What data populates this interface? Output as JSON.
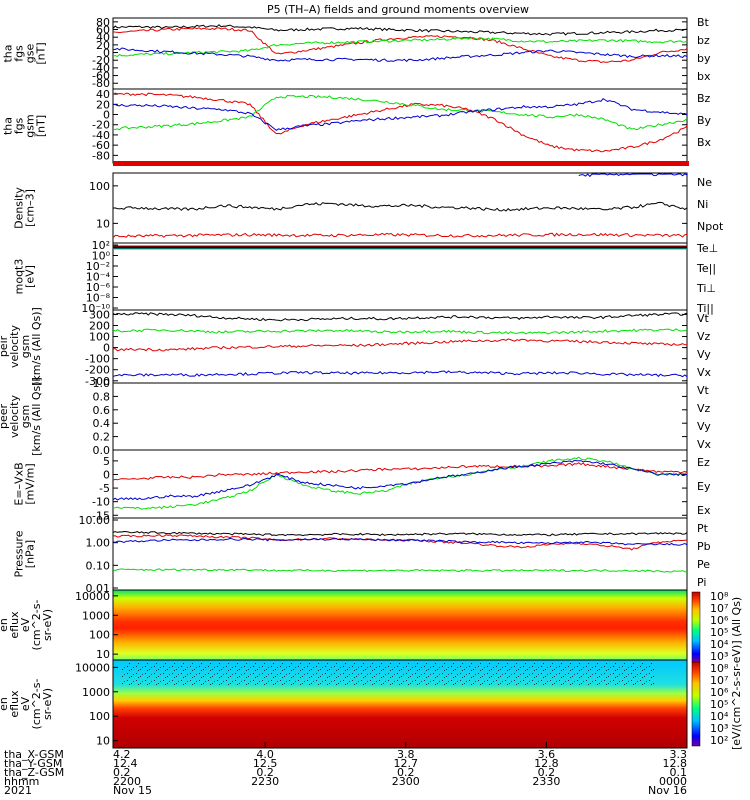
{
  "title": "P5 (TH–A) fields and ground moments overview",
  "colors": {
    "black": "#000000",
    "red": "#e00000",
    "green": "#00e000",
    "blue": "#0000d0"
  },
  "chart_data": [
    {
      "type": "line",
      "panel": "tha_fgs_gse",
      "ylabel": [
        "tha",
        "fgs",
        "gse",
        "[nT]"
      ],
      "yticks": [
        -80,
        -60,
        -40,
        -20,
        0,
        20,
        40,
        60,
        80
      ],
      "ylim": [
        -95,
        90
      ],
      "series": [
        {
          "name": "Bt",
          "color": "black",
          "values": [
            66,
            67,
            65,
            68,
            70,
            66,
            58,
            60,
            62,
            63,
            60,
            58,
            56,
            54,
            52,
            50,
            48,
            50,
            52,
            54,
            58,
            58
          ]
        },
        {
          "name": "bz",
          "color": "red",
          "values": [
            52,
            56,
            60,
            62,
            62,
            58,
            -5,
            5,
            15,
            25,
            35,
            40,
            42,
            40,
            30,
            10,
            -10,
            -20,
            -25,
            -20,
            0,
            10
          ]
        },
        {
          "name": "by",
          "color": "green",
          "values": [
            -8,
            -5,
            -3,
            0,
            2,
            5,
            20,
            24,
            26,
            28,
            30,
            32,
            34,
            38,
            35,
            30,
            28,
            30,
            32,
            30,
            28,
            30
          ]
        },
        {
          "name": "bx",
          "color": "blue",
          "values": [
            10,
            6,
            2,
            -2,
            -5,
            -10,
            -20,
            -18,
            -18,
            -18,
            -20,
            -20,
            -15,
            -10,
            -6,
            0,
            5,
            0,
            -5,
            -10,
            -8,
            -10
          ]
        }
      ]
    },
    {
      "type": "line",
      "panel": "tha_fgs_gsm",
      "ylabel": [
        "tha",
        "fgs",
        "gsm",
        "[nT]"
      ],
      "yticks": [
        -80,
        -60,
        -40,
        -20,
        0,
        20,
        40
      ],
      "ylim": [
        -95,
        50
      ],
      "series": [
        {
          "name": "Bz",
          "color": "red",
          "values": [
            40,
            40,
            38,
            34,
            28,
            20,
            -40,
            -20,
            -10,
            0,
            10,
            20,
            18,
            10,
            -10,
            -40,
            -62,
            -70,
            -72,
            -64,
            -50,
            -25
          ]
        },
        {
          "name": "By",
          "color": "green",
          "values": [
            -28,
            -25,
            -22,
            -18,
            -12,
            -5,
            35,
            35,
            34,
            30,
            25,
            18,
            10,
            8,
            5,
            0,
            -5,
            0,
            -10,
            -30,
            -20,
            -10
          ]
        },
        {
          "name": "Bx",
          "color": "blue",
          "values": [
            18,
            18,
            16,
            12,
            10,
            2,
            -30,
            -22,
            -18,
            -12,
            -8,
            -5,
            -2,
            5,
            10,
            15,
            15,
            20,
            30,
            10,
            5,
            0
          ]
        }
      ]
    },
    {
      "type": "line",
      "panel": "density",
      "log": true,
      "ylabel": [
        "Density",
        "[cm–3]"
      ],
      "yticks": [
        10,
        100
      ],
      "ylim": [
        3,
        220
      ],
      "series": [
        {
          "name": "Ne",
          "color": "red",
          "values": [
            4.5,
            4.6,
            4.7,
            4.8,
            4.9,
            5.0,
            4.9,
            4.8,
            4.8,
            4.9,
            5.0,
            4.9,
            4.8,
            4.7,
            4.8,
            4.9,
            5.0,
            5.1,
            5.0,
            4.9,
            4.8,
            4.7
          ]
        },
        {
          "name": "Ni",
          "color": "black",
          "values": [
            25,
            26,
            24,
            24,
            30,
            27,
            24,
            32,
            34,
            30,
            29,
            30,
            27,
            26,
            23,
            24,
            26,
            25,
            23,
            27,
            34,
            24
          ]
        },
        {
          "name": "Npot",
          "color": "blue",
          "values": [
            null,
            null,
            null,
            null,
            null,
            null,
            null,
            null,
            null,
            null,
            null,
            null,
            null,
            null,
            null,
            null,
            null,
            190,
            200,
            210,
            200,
            205
          ]
        }
      ]
    },
    {
      "type": "line",
      "panel": "moqt3",
      "log": true,
      "ylabel": [
        "moqt3",
        "[eV]"
      ],
      "ytick_labels": [
        "10²",
        "10⁰",
        "10⁻²",
        "10⁻⁴",
        "10⁻⁶",
        "10⁻⁸",
        "10⁻¹⁰"
      ],
      "legend": [
        "Te⊥",
        "Te||",
        "Ti⊥",
        "Ti||"
      ]
    },
    {
      "type": "line",
      "panel": "tha_peir_velocity_gsm",
      "ylabel": [
        "tha",
        "peir",
        "velocity",
        "gsm",
        "[km/s (All Qs)]"
      ],
      "yticks": [
        -300,
        -200,
        -100,
        0,
        100,
        200,
        300
      ],
      "ylim": [
        -320,
        340
      ],
      "series": [
        {
          "name": "Vt",
          "color": "black",
          "values": [
            300,
            305,
            300,
            290,
            270,
            260,
            250,
            255,
            260,
            265,
            260,
            270,
            275,
            280,
            270,
            265,
            280,
            270,
            275,
            290,
            300,
            305
          ]
        },
        {
          "name": "Vz",
          "color": "red",
          "values": [
            -20,
            -15,
            -20,
            -10,
            0,
            5,
            10,
            15,
            20,
            20,
            30,
            40,
            50,
            60,
            65,
            70,
            60,
            55,
            50,
            40,
            30,
            30
          ]
        },
        {
          "name": "Vy",
          "color": "green",
          "values": [
            150,
            155,
            160,
            150,
            140,
            145,
            150,
            150,
            155,
            150,
            140,
            145,
            150,
            140,
            135,
            130,
            135,
            140,
            150,
            155,
            160,
            160
          ]
        },
        {
          "name": "Vx",
          "color": "blue",
          "values": [
            -250,
            -248,
            -245,
            -248,
            -240,
            -238,
            -230,
            -225,
            -230,
            -232,
            -228,
            -225,
            -220,
            -225,
            -230,
            -235,
            -230,
            -228,
            -240,
            -245,
            -250,
            -252
          ]
        }
      ]
    },
    {
      "type": "line",
      "panel": "tha_peer_velocity_gsm",
      "ylabel": [
        "tha",
        "peer",
        "velocity",
        "gsm",
        "[km/s (All Qs)]"
      ],
      "yticks": [
        0.0,
        0.2,
        0.4,
        0.6,
        0.8,
        1.0
      ],
      "ylim": [
        0,
        1
      ],
      "legend": [
        "Vt",
        "Vz",
        "Vy",
        "Vx"
      ]
    },
    {
      "type": "line",
      "panel": "E_VxB",
      "ylabel": [
        "E=–VxB",
        "[mV/m]"
      ],
      "yticks": [
        -15,
        -10,
        -5,
        0,
        5
      ],
      "ylim": [
        -16,
        9
      ],
      "series": [
        {
          "name": "Ez",
          "color": "red",
          "values": [
            -2,
            -1.5,
            -1,
            -1,
            0,
            0,
            0.5,
            1,
            1,
            1.5,
            2,
            2,
            2.5,
            3,
            3,
            3,
            3,
            4,
            3,
            2,
            1,
            1
          ]
        },
        {
          "name": "Ey",
          "color": "green",
          "values": [
            -12,
            -12.5,
            -12,
            -11,
            -9,
            -6,
            0,
            -4,
            -6,
            -7,
            -6,
            -3,
            -1,
            0,
            2,
            3,
            5,
            6,
            5,
            2,
            0,
            0
          ]
        },
        {
          "name": "Ex",
          "color": "blue",
          "values": [
            -9,
            -9,
            -8,
            -8,
            -6,
            -4,
            0,
            -3,
            -4,
            -5,
            -4,
            -3,
            -1,
            0,
            2,
            3,
            4,
            5,
            4,
            2,
            0,
            0
          ]
        }
      ]
    },
    {
      "type": "line",
      "panel": "pressure",
      "log": true,
      "ylabel": [
        "Pressure",
        "[nPa]"
      ],
      "ytick_labels": [
        "10.00",
        "1.00",
        "0.10",
        "0.01"
      ],
      "ylim": [
        0.01,
        10
      ],
      "series": [
        {
          "name": "Pt",
          "color": "black",
          "values": [
            2.6,
            2.5,
            2.4,
            2.3,
            2.2,
            2.1,
            2.0,
            2.0,
            2.1,
            2.1,
            2.0,
            2.1,
            2.2,
            2.2,
            2.1,
            2.0,
            2.0,
            2.1,
            2.2,
            2.2,
            2.3,
            2.3
          ]
        },
        {
          "name": "Pb",
          "color": "red",
          "values": [
            1.7,
            1.8,
            1.9,
            1.8,
            1.6,
            1.5,
            1.2,
            1.3,
            1.4,
            1.3,
            1.2,
            1.2,
            1.0,
            0.9,
            0.7,
            0.6,
            0.8,
            0.9,
            0.7,
            0.5,
            1.0,
            1.2
          ]
        },
        {
          "name": "Pe",
          "color": "green",
          "values": [
            0.07,
            0.07,
            0.07,
            0.07,
            0.07,
            0.07,
            0.065,
            0.065,
            0.065,
            0.065,
            0.065,
            0.065,
            0.065,
            0.065,
            0.065,
            0.065,
            0.065,
            0.065,
            0.065,
            0.065,
            0.06,
            0.06
          ]
        },
        {
          "name": "Pi",
          "color": "blue",
          "values": [
            1.0,
            1.1,
            1.2,
            1.2,
            1.3,
            1.3,
            1.2,
            1.3,
            1.3,
            1.3,
            1.2,
            1.2,
            1.1,
            1.0,
            1.0,
            0.9,
            0.9,
            1.0,
            0.9,
            0.8,
            0.8,
            0.8
          ]
        }
      ]
    },
    {
      "type": "heatmap",
      "panel": "tha_peir_en_eflux",
      "ylabel": [
        "tha",
        "peir",
        "en",
        "eflux",
        "eV",
        "(cm^2-s-",
        "sr-eV)"
      ],
      "yticks": [
        10,
        100,
        1000,
        10000
      ]
    },
    {
      "type": "heatmap",
      "panel": "tha_peer_en_eflux",
      "ylabel": [
        "tha",
        "peer",
        "en",
        "eflux",
        "eV",
        "(cm^2-s-",
        "sr-eV)"
      ],
      "yticks": [
        10,
        100,
        1000,
        10000
      ]
    }
  ],
  "colorbar": {
    "label": "[eV/(cm^2-s-sr-eV)] (All Qs)",
    "upper_ticks": [
      "10⁸",
      "10⁷",
      "10⁶",
      "10⁵",
      "10⁴",
      "10³"
    ],
    "lower_ticks": [
      "10⁸",
      "10⁷",
      "10⁶",
      "10⁵",
      "10⁴",
      "10³",
      "10²"
    ]
  },
  "xaxis": {
    "row_labels": [
      "tha_X-GSM",
      "tha_Y-GSM",
      "tha_Z-GSM",
      "hhmm",
      "2021"
    ],
    "columns": [
      [
        "4.2",
        "12.4",
        "0.2",
        "2200",
        "Nov 15"
      ],
      [
        "4.0",
        "12.5",
        "0.2",
        "2230",
        ""
      ],
      [
        "3.8",
        "12.7",
        "0.2",
        "2300",
        ""
      ],
      [
        "3.6",
        "12.8",
        "0.2",
        "2330",
        ""
      ],
      [
        "3.3",
        "12.8",
        "0.1",
        "0000",
        "Nov 16"
      ]
    ]
  }
}
